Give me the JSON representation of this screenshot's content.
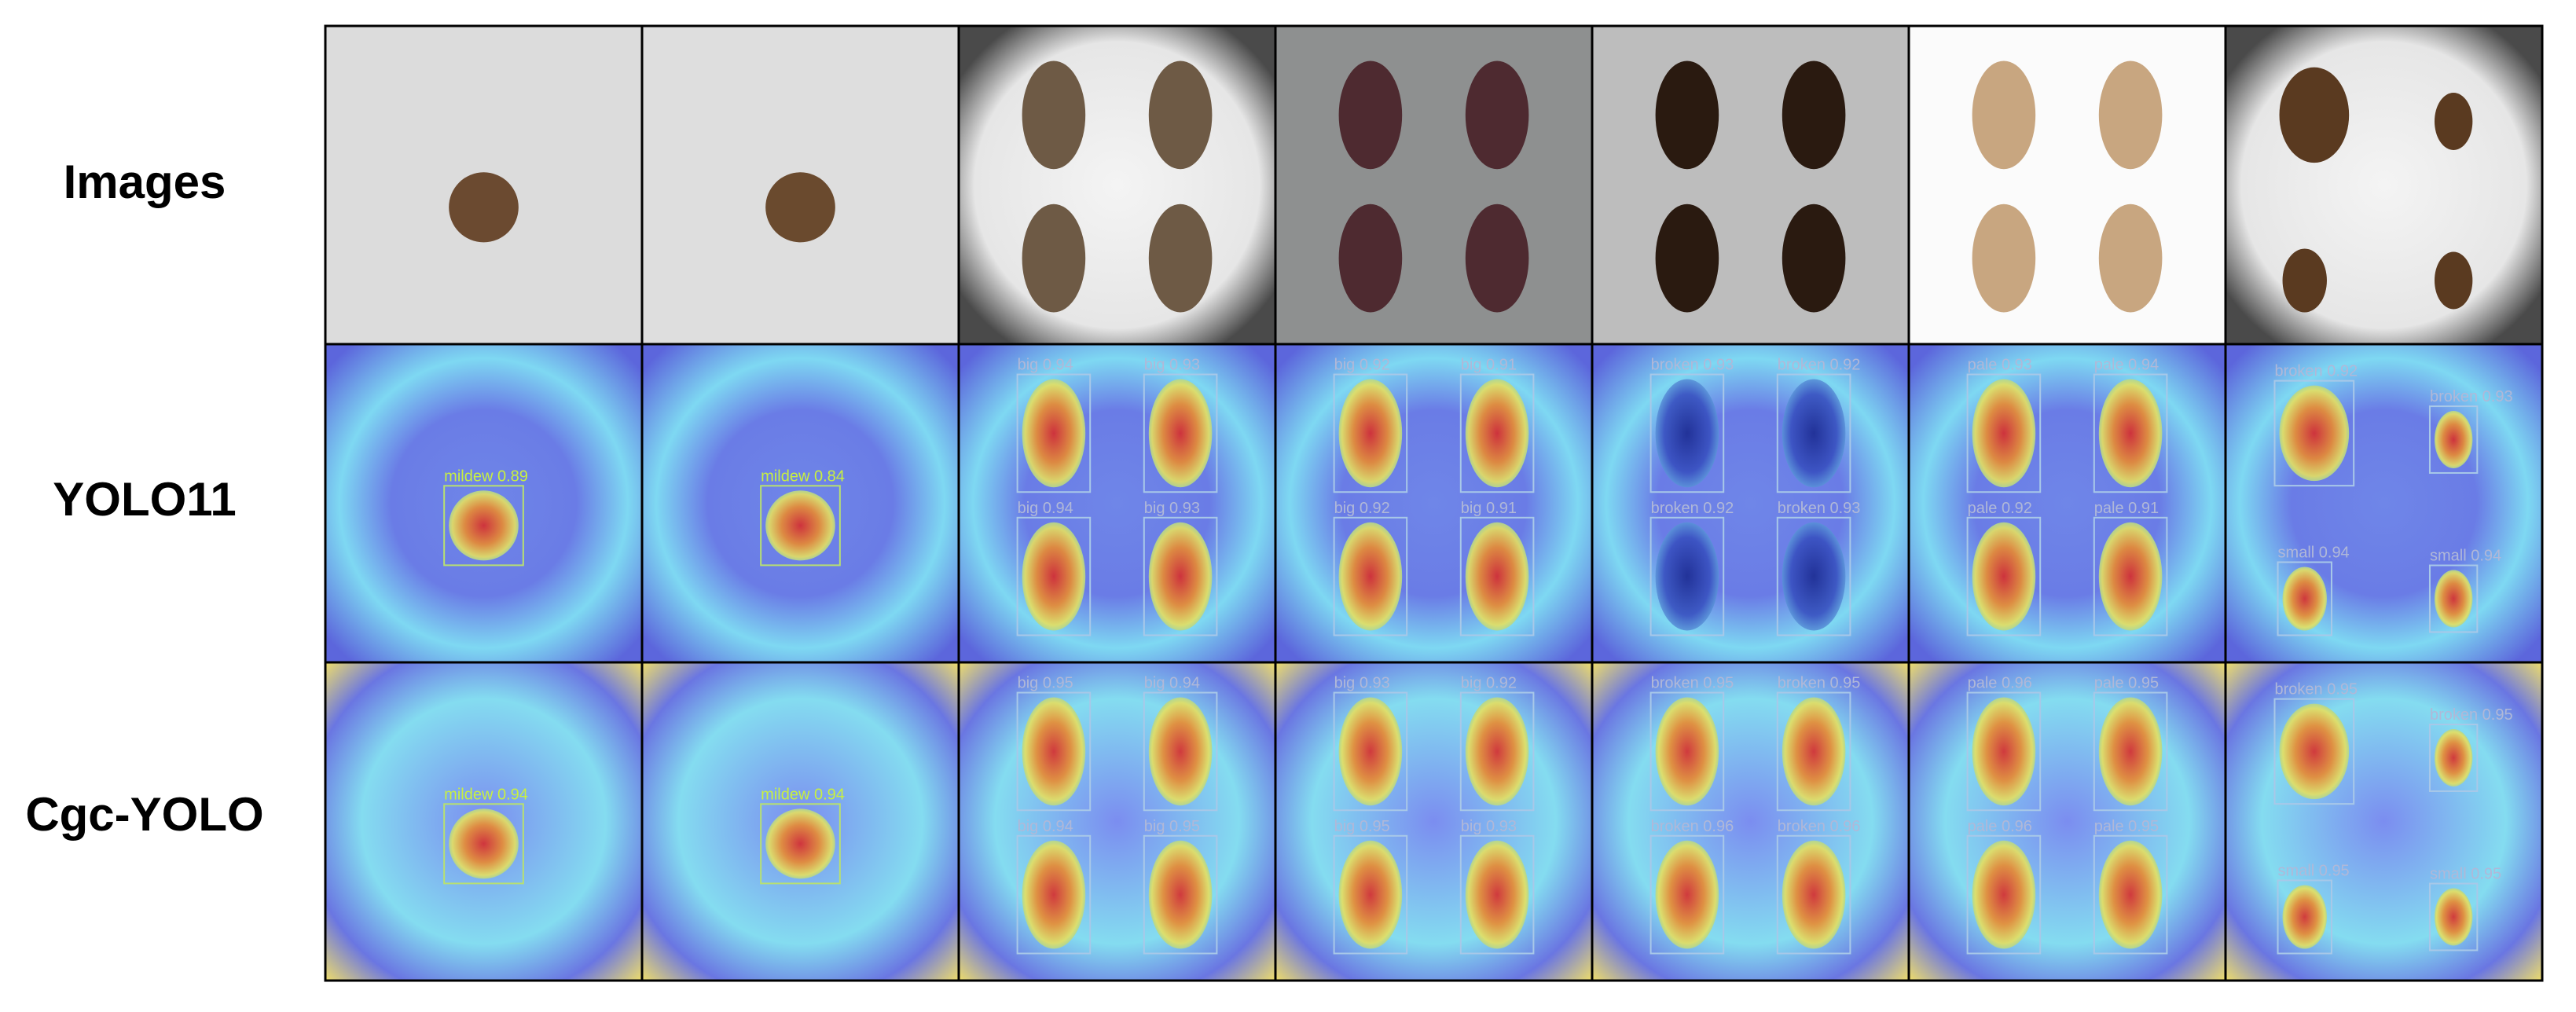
{
  "rows": [
    {
      "label": "Images"
    },
    {
      "label": "YOLO11",
      "detections": [
        [
          "mildew 0.89"
        ],
        [
          "mildew 0.84"
        ],
        [
          "big 0.94",
          "big 0.93",
          "big 0.94",
          "big 0.93"
        ],
        [
          "big 0.92",
          "big 0.91",
          "big 0.92",
          "big 0.91"
        ],
        [
          "broken 0.93",
          "broken 0.92",
          "broken 0.92",
          "broken 0.93"
        ],
        [
          "pale 0.93",
          "pale 0.94",
          "pale 0.92",
          "pale 0.91"
        ],
        [
          "broken 0.92",
          "broken 0.93",
          "small 0.94",
          "small 0.94"
        ]
      ]
    },
    {
      "label": "Cgc-YOLO",
      "detections": [
        [
          "mildew 0.94"
        ],
        [
          "mildew 0.94"
        ],
        [
          "big 0.95",
          "big 0.94",
          "big 0.94",
          "big 0.95"
        ],
        [
          "big 0.93",
          "big 0.92",
          "big 0.95",
          "big 0.93"
        ],
        [
          "broken 0.95",
          "broken 0.95",
          "broken 0.96",
          "broken 0.96"
        ],
        [
          "pale 0.96",
          "pale 0.95",
          "pale 0.96",
          "pale 0.95"
        ],
        [
          "broken 0.95",
          "broken 0.95",
          "small 0.95",
          "small 0.95"
        ]
      ]
    }
  ]
}
